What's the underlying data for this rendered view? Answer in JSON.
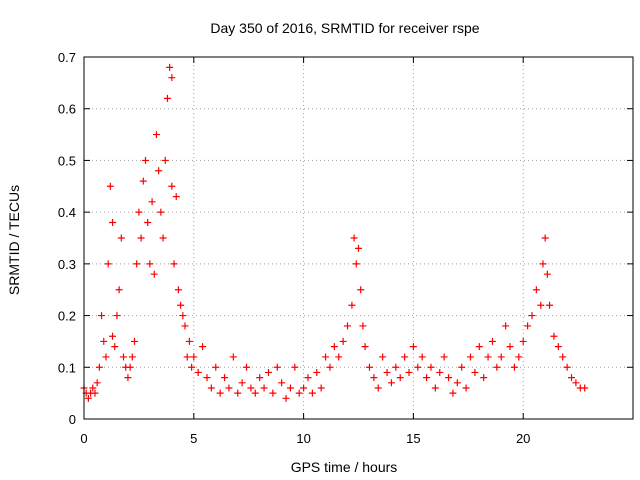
{
  "chart_data": {
    "type": "scatter",
    "title": "Day 350 of 2016, SRMTID for receiver rspe",
    "xlabel": "GPS time / hours",
    "ylabel": "SRMTID / TECUs",
    "xlim": [
      0,
      25
    ],
    "ylim": [
      0,
      0.7
    ],
    "x_ticks": [
      0,
      5,
      10,
      15,
      20
    ],
    "x_tick_labels": [
      "0",
      "5",
      "10",
      "15",
      "20"
    ],
    "y_ticks": [
      0,
      0.1,
      0.2,
      0.3,
      0.4,
      0.5,
      0.6,
      0.7
    ],
    "y_tick_labels": [
      "0",
      "0.1",
      "0.2",
      "0.3",
      "0.4",
      "0.5",
      "0.6",
      "0.7"
    ],
    "grid": true,
    "marker": "plus",
    "series": [
      {
        "name": "SRMTID",
        "color": "#ff0000",
        "x": [
          0.0,
          0.1,
          0.2,
          0.3,
          0.4,
          0.5,
          0.6,
          0.7,
          0.8,
          0.9,
          1.0,
          1.1,
          1.2,
          1.3,
          1.3,
          1.4,
          1.5,
          1.6,
          1.7,
          1.8,
          1.9,
          2.0,
          2.1,
          2.2,
          2.3,
          2.4,
          2.5,
          2.6,
          2.7,
          2.8,
          2.9,
          3.0,
          3.1,
          3.2,
          3.3,
          3.4,
          3.5,
          3.6,
          3.7,
          3.8,
          3.9,
          4.0,
          4.0,
          4.1,
          4.2,
          4.3,
          4.4,
          4.5,
          4.6,
          4.7,
          4.8,
          4.9,
          5.0,
          5.2,
          5.4,
          5.6,
          5.8,
          6.0,
          6.2,
          6.4,
          6.6,
          6.8,
          7.0,
          7.2,
          7.4,
          7.6,
          7.8,
          8.0,
          8.2,
          8.4,
          8.6,
          8.8,
          9.0,
          9.2,
          9.4,
          9.6,
          9.8,
          10.0,
          10.2,
          10.4,
          10.6,
          10.8,
          11.0,
          11.2,
          11.4,
          11.6,
          11.8,
          12.0,
          12.2,
          12.3,
          12.4,
          12.5,
          12.6,
          12.7,
          12.8,
          13.0,
          13.2,
          13.4,
          13.6,
          13.8,
          14.0,
          14.2,
          14.4,
          14.6,
          14.8,
          15.0,
          15.2,
          15.4,
          15.6,
          15.8,
          16.0,
          16.2,
          16.4,
          16.6,
          16.8,
          17.0,
          17.2,
          17.4,
          17.6,
          17.8,
          18.0,
          18.2,
          18.4,
          18.6,
          18.8,
          19.0,
          19.2,
          19.4,
          19.6,
          19.8,
          20.0,
          20.2,
          20.4,
          20.6,
          20.8,
          20.9,
          21.0,
          21.1,
          21.2,
          21.4,
          21.6,
          21.8,
          22.0,
          22.2,
          22.4,
          22.6,
          22.8
        ],
        "y": [
          0.06,
          0.05,
          0.04,
          0.05,
          0.06,
          0.05,
          0.07,
          0.1,
          0.2,
          0.15,
          0.12,
          0.3,
          0.45,
          0.38,
          0.16,
          0.14,
          0.2,
          0.25,
          0.35,
          0.12,
          0.1,
          0.08,
          0.1,
          0.12,
          0.15,
          0.3,
          0.4,
          0.35,
          0.46,
          0.5,
          0.38,
          0.3,
          0.42,
          0.28,
          0.55,
          0.48,
          0.4,
          0.35,
          0.5,
          0.62,
          0.68,
          0.66,
          0.45,
          0.3,
          0.43,
          0.25,
          0.22,
          0.2,
          0.18,
          0.12,
          0.15,
          0.1,
          0.12,
          0.09,
          0.14,
          0.08,
          0.06,
          0.1,
          0.05,
          0.08,
          0.06,
          0.12,
          0.05,
          0.07,
          0.1,
          0.06,
          0.05,
          0.08,
          0.06,
          0.09,
          0.05,
          0.1,
          0.07,
          0.04,
          0.06,
          0.1,
          0.05,
          0.06,
          0.08,
          0.05,
          0.09,
          0.06,
          0.12,
          0.1,
          0.14,
          0.12,
          0.15,
          0.18,
          0.22,
          0.35,
          0.3,
          0.33,
          0.25,
          0.18,
          0.14,
          0.1,
          0.08,
          0.06,
          0.12,
          0.09,
          0.07,
          0.1,
          0.08,
          0.12,
          0.09,
          0.14,
          0.1,
          0.12,
          0.08,
          0.1,
          0.06,
          0.09,
          0.12,
          0.08,
          0.05,
          0.07,
          0.1,
          0.06,
          0.12,
          0.09,
          0.14,
          0.08,
          0.12,
          0.15,
          0.1,
          0.12,
          0.18,
          0.14,
          0.1,
          0.12,
          0.15,
          0.18,
          0.2,
          0.25,
          0.22,
          0.3,
          0.35,
          0.28,
          0.22,
          0.16,
          0.14,
          0.12,
          0.1,
          0.08,
          0.07,
          0.06,
          0.06
        ]
      }
    ]
  }
}
